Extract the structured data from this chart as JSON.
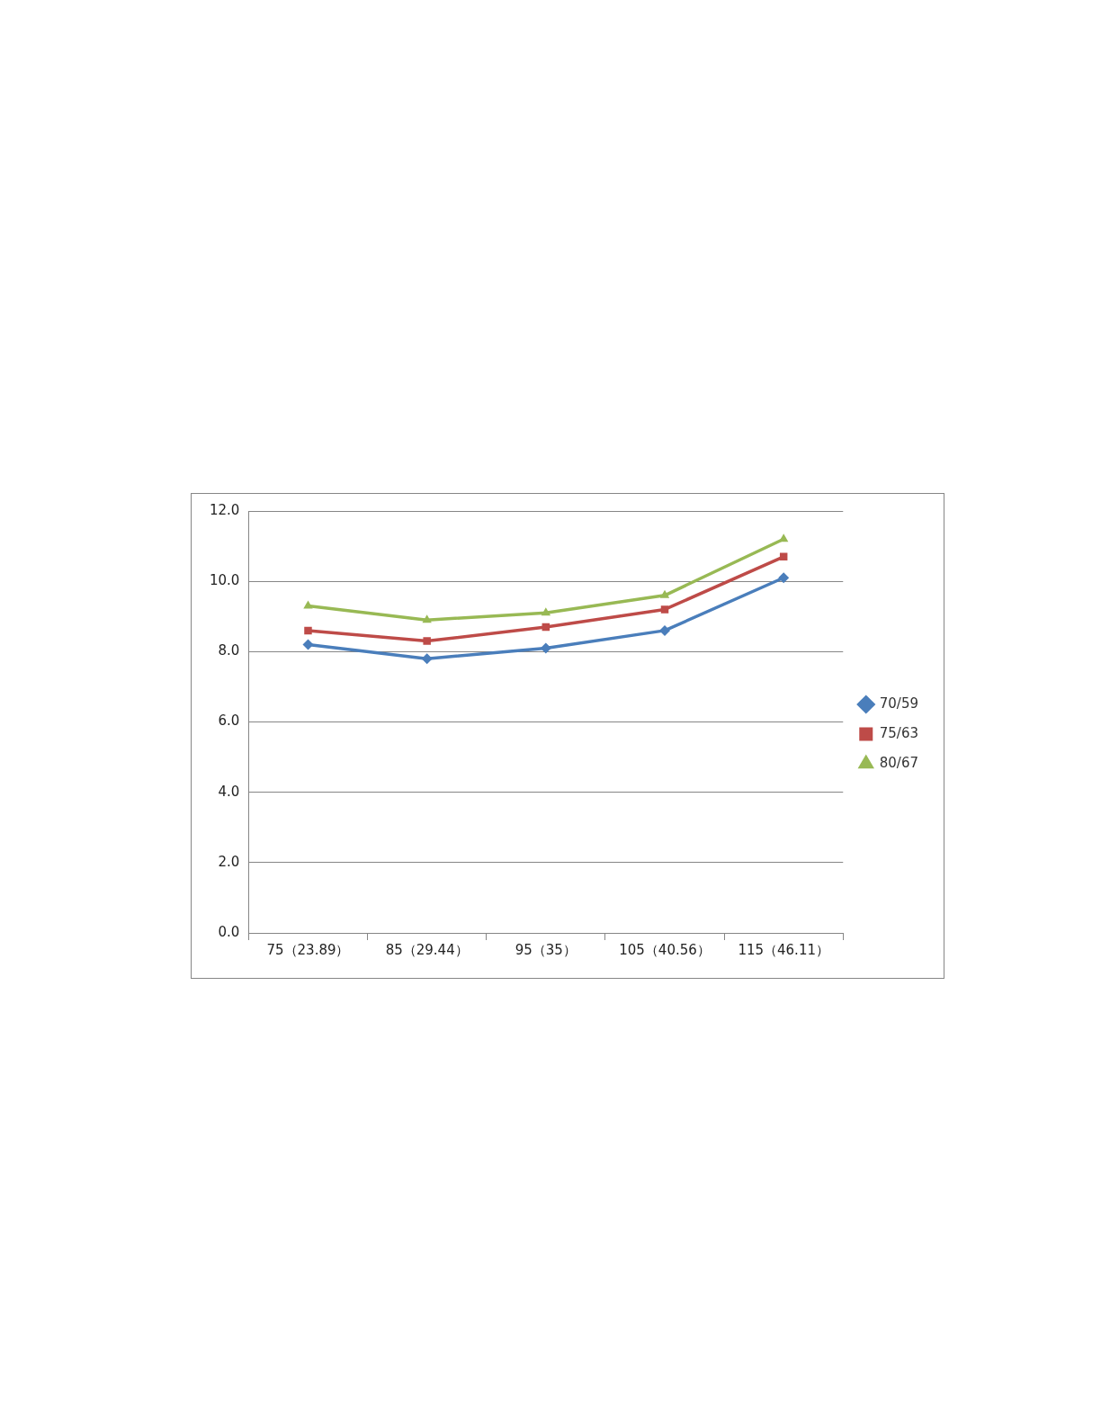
{
  "chart_data": {
    "type": "line",
    "categories": [
      "75（23.89）",
      "85（29.44）",
      "95（35）",
      "105（40.56）",
      "115（46.11）"
    ],
    "series": [
      {
        "name": "70/59",
        "color": "#4a7ebb",
        "marker": "diamond",
        "values": [
          8.2,
          7.8,
          8.1,
          8.6,
          10.1
        ]
      },
      {
        "name": "75/63",
        "color": "#be4b48",
        "marker": "square",
        "values": [
          8.6,
          8.3,
          8.7,
          9.2,
          10.7
        ]
      },
      {
        "name": "80/67",
        "color": "#98b954",
        "marker": "triangle",
        "values": [
          9.3,
          8.9,
          9.1,
          9.6,
          11.2
        ]
      }
    ],
    "ylim": [
      0,
      12
    ],
    "yticks": [
      {
        "value": 0,
        "label": "0.0"
      },
      {
        "value": 2,
        "label": "2.0"
      },
      {
        "value": 4,
        "label": "4.0"
      },
      {
        "value": 6,
        "label": "6.0"
      },
      {
        "value": 8,
        "label": "8.0"
      },
      {
        "value": 10,
        "label": "10.0"
      },
      {
        "value": 12,
        "label": "12.0"
      }
    ],
    "grid": "y",
    "legend": "right",
    "line_style": "solid"
  }
}
